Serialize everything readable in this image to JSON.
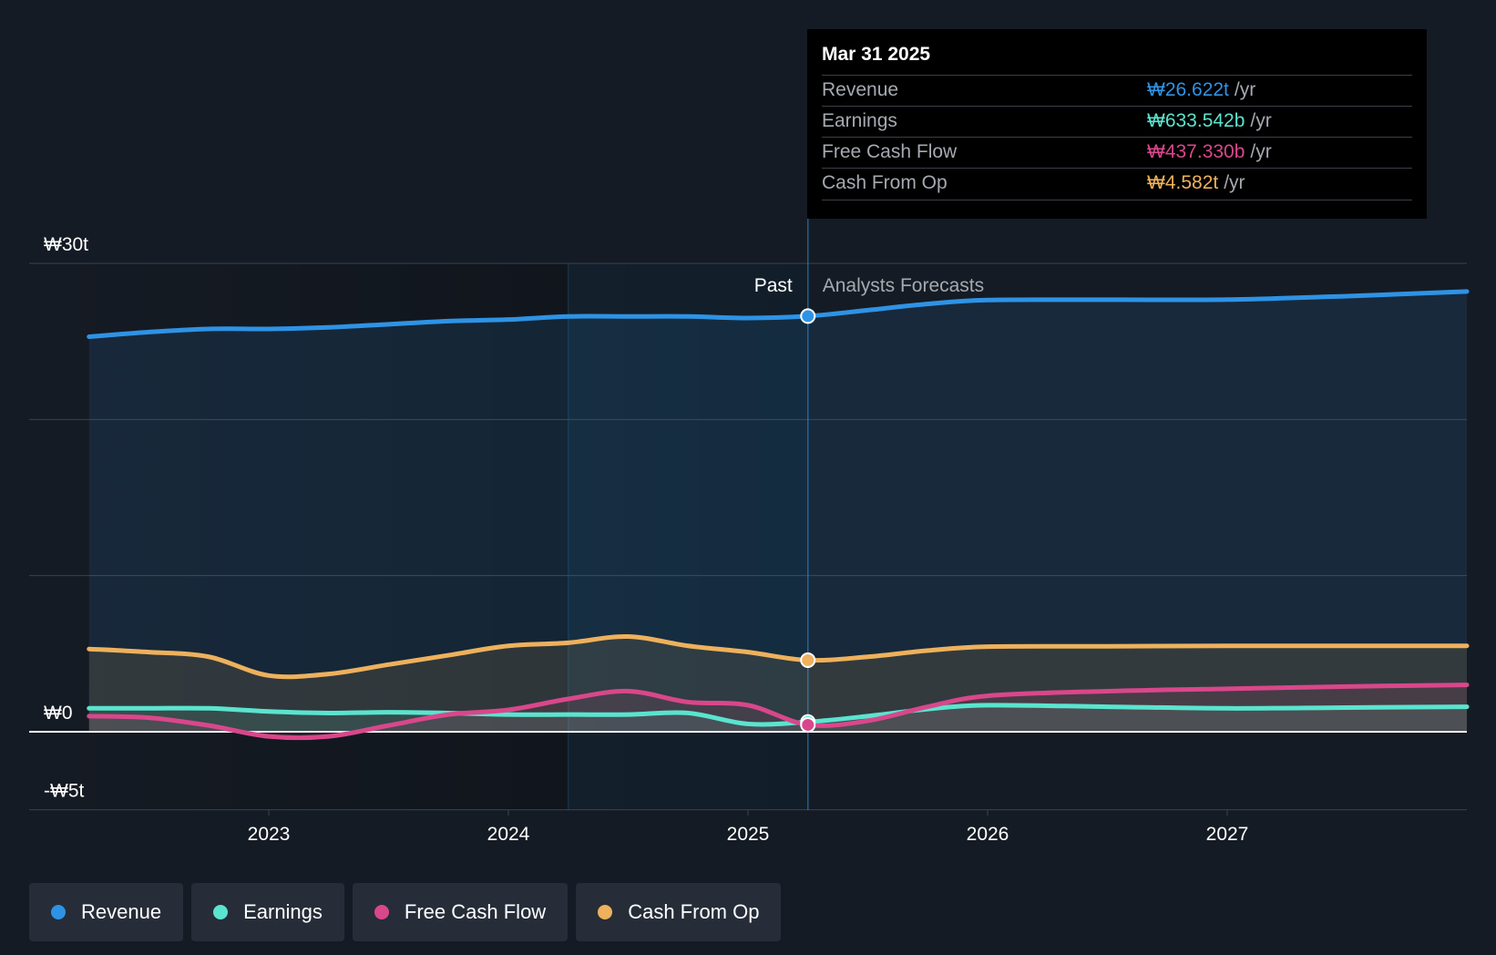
{
  "tooltip": {
    "date": "Mar 31 2025",
    "rows": [
      {
        "label": "Revenue",
        "value": "₩26.622t",
        "unit": "/yr",
        "color": "#2e93e5"
      },
      {
        "label": "Earnings",
        "value": "₩633.542b",
        "unit": "/yr",
        "color": "#5ae4cf"
      },
      {
        "label": "Free Cash Flow",
        "value": "₩437.330b",
        "unit": "/yr",
        "color": "#d9478b"
      },
      {
        "label": "Cash From Op",
        "value": "₩4.582t",
        "unit": "/yr",
        "color": "#eeb15c"
      }
    ]
  },
  "legend": [
    {
      "label": "Revenue",
      "color": "#2e93e5"
    },
    {
      "label": "Earnings",
      "color": "#5ae4cf"
    },
    {
      "label": "Free Cash Flow",
      "color": "#d9478b"
    },
    {
      "label": "Cash From Op",
      "color": "#eeb15c"
    }
  ],
  "chart_data": {
    "type": "line",
    "title": "",
    "xlabel": "",
    "ylabel": "",
    "y_unit": "trillion KRW",
    "xlim": [
      2022.25,
      2028.0
    ],
    "ylim": [
      -5,
      30
    ],
    "y_ticks": [
      {
        "value": 30,
        "label": "₩30t"
      },
      {
        "value": 0,
        "label": "₩0"
      },
      {
        "value": -5,
        "label": "-₩5t"
      }
    ],
    "y_gridlines": [
      30,
      20,
      10,
      0,
      -5
    ],
    "x_ticks": [
      {
        "value": 2023,
        "label": "2023"
      },
      {
        "value": 2024,
        "label": "2024"
      },
      {
        "value": 2025,
        "label": "2025"
      },
      {
        "value": 2026,
        "label": "2026"
      },
      {
        "value": 2027,
        "label": "2027"
      }
    ],
    "past_label": "Past",
    "forecast_label": "Analysts Forecasts",
    "divider_x": 2025.25,
    "highlight_band": [
      2024.25,
      2025.25
    ],
    "series": [
      {
        "name": "Revenue",
        "color": "#2e93e5",
        "x": [
          2022.25,
          2022.5,
          2022.75,
          2023.0,
          2023.25,
          2023.5,
          2023.75,
          2024.0,
          2024.25,
          2024.5,
          2024.75,
          2025.0,
          2025.25,
          2025.5,
          2025.75,
          2026.0,
          2026.5,
          2027.0,
          2027.5,
          2028.0
        ],
        "y": [
          25.3,
          25.6,
          25.8,
          25.8,
          25.9,
          26.1,
          26.3,
          26.4,
          26.6,
          26.6,
          26.6,
          26.5,
          26.62,
          27.0,
          27.4,
          27.65,
          27.67,
          27.68,
          27.9,
          28.2
        ]
      },
      {
        "name": "Earnings",
        "color": "#5ae4cf",
        "x": [
          2022.25,
          2022.5,
          2022.75,
          2023.0,
          2023.25,
          2023.5,
          2023.75,
          2024.0,
          2024.25,
          2024.5,
          2024.75,
          2025.0,
          2025.25,
          2025.5,
          2025.75,
          2026.0,
          2026.5,
          2027.0,
          2027.5,
          2028.0
        ],
        "y": [
          1.5,
          1.5,
          1.5,
          1.3,
          1.2,
          1.25,
          1.2,
          1.1,
          1.1,
          1.1,
          1.2,
          0.5,
          0.63,
          1.0,
          1.45,
          1.7,
          1.6,
          1.5,
          1.55,
          1.6
        ]
      },
      {
        "name": "Free Cash Flow",
        "color": "#d9478b",
        "x": [
          2022.25,
          2022.5,
          2022.75,
          2023.0,
          2023.25,
          2023.5,
          2023.75,
          2024.0,
          2024.25,
          2024.5,
          2024.75,
          2025.0,
          2025.25,
          2025.5,
          2025.75,
          2026.0,
          2026.5,
          2027.0,
          2027.5,
          2028.0
        ],
        "y": [
          1.0,
          0.9,
          0.4,
          -0.3,
          -0.3,
          0.4,
          1.1,
          1.4,
          2.1,
          2.6,
          1.9,
          1.7,
          0.44,
          0.7,
          1.6,
          2.3,
          2.6,
          2.75,
          2.9,
          3.0
        ]
      },
      {
        "name": "Cash From Op",
        "color": "#eeb15c",
        "x": [
          2022.25,
          2022.5,
          2022.75,
          2023.0,
          2023.25,
          2023.5,
          2023.75,
          2024.0,
          2024.25,
          2024.5,
          2024.75,
          2025.0,
          2025.25,
          2025.5,
          2025.75,
          2026.0,
          2026.5,
          2027.0,
          2027.5,
          2028.0
        ],
        "y": [
          5.3,
          5.1,
          4.8,
          3.6,
          3.7,
          4.3,
          4.9,
          5.5,
          5.7,
          6.1,
          5.5,
          5.1,
          4.58,
          4.8,
          5.2,
          5.45,
          5.47,
          5.5,
          5.5,
          5.5
        ]
      }
    ]
  }
}
